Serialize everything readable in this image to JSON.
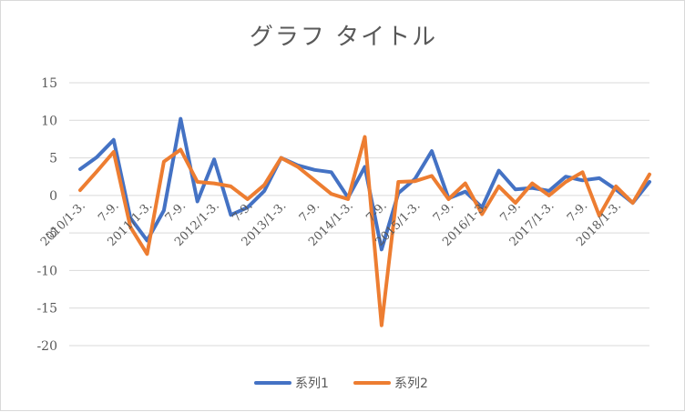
{
  "chart_data": {
    "type": "line",
    "title": "グラフ タイトル",
    "ylim": [
      -20,
      15
    ],
    "yticks": [
      -20,
      -15,
      -10,
      -5,
      0,
      5,
      10,
      15
    ],
    "ytick_labels": [
      "-20",
      "-15",
      "-10",
      "-5",
      "0",
      "5",
      "10",
      "15"
    ],
    "x_tick_labels": [
      "2010/1-3.",
      "7-9.",
      "2011/1-3.",
      "7-9.",
      "2012/1-3.",
      "7-9.",
      "2013/1-3.",
      "7-9.",
      "2014/1-3.",
      "7-9.",
      "2015/1-3.",
      "7-9.",
      "2016/1-3.",
      "7-9.",
      "2017/1-3.",
      "7-9.",
      "2018/1-3."
    ],
    "grid": true,
    "legend": "bottom",
    "series": [
      {
        "name": "系列1",
        "color": "#4472C4",
        "values": [
          3.5,
          5.1,
          7.4,
          -3.0,
          -6.0,
          -2.0,
          10.2,
          -0.8,
          4.8,
          -2.6,
          -1.6,
          0.6,
          5.0,
          4.0,
          3.4,
          3.1,
          -0.3,
          3.8,
          -7.2,
          0.3,
          2.2,
          5.9,
          -0.4,
          0.5,
          -1.6,
          3.3,
          0.8,
          1.0,
          0.6,
          2.5,
          2.0,
          2.3,
          0.8,
          -1.0,
          1.8
        ]
      },
      {
        "name": "系列2",
        "color": "#ED7D31",
        "values": [
          0.7,
          3.2,
          5.8,
          -4.2,
          -7.8,
          4.5,
          6.1,
          1.8,
          1.6,
          1.2,
          -0.5,
          1.4,
          5.0,
          3.8,
          2.0,
          0.2,
          -0.5,
          7.8,
          -17.3,
          1.8,
          1.9,
          2.6,
          -0.5,
          1.6,
          -2.5,
          1.2,
          -1.0,
          1.6,
          0.0,
          1.8,
          3.1,
          -2.7,
          1.2,
          -1.0,
          2.8
        ]
      }
    ]
  }
}
